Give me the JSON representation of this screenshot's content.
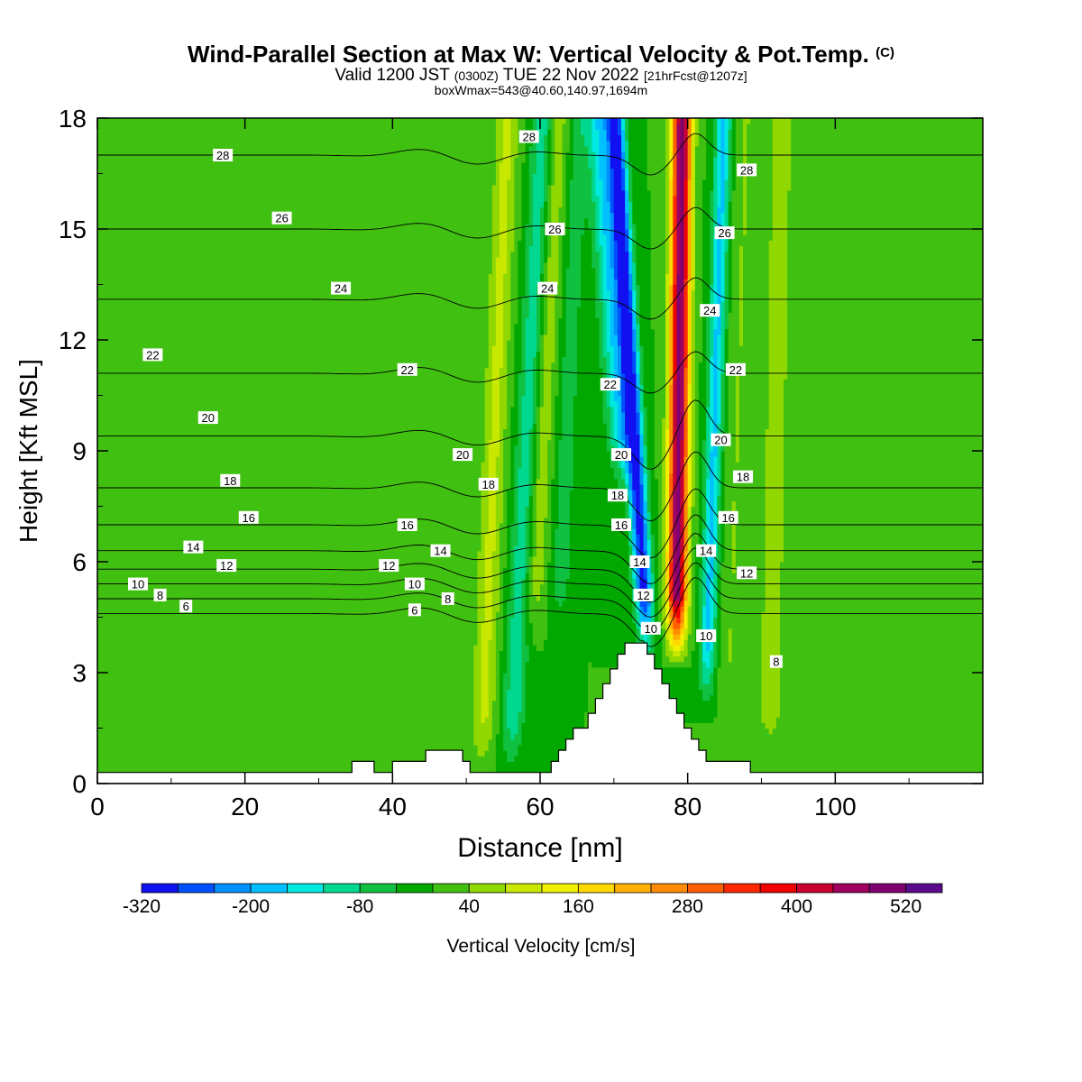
{
  "header": {
    "title": "Wind-Parallel Section at Max W: Vertical Velocity & Pot.Temp.",
    "copyright": "(C)",
    "valid_prefix": "Valid 1200 JST",
    "valid_utc": "(0300Z)",
    "valid_date": "TUE 22 Nov 2022",
    "forecast": "[21hrFcst@1207z]",
    "box_info": "boxWmax=543@40.60,140.97,1694m"
  },
  "chart_data": {
    "type": "heatmap",
    "xlabel": "Distance [nm]",
    "ylabel": "Height [Kft MSL]",
    "xlim": [
      0,
      120
    ],
    "ylim": [
      0,
      18
    ],
    "x_ticks": [
      "0",
      "20",
      "40",
      "60",
      "80",
      "100"
    ],
    "y_ticks": [
      "0",
      "3",
      "6",
      "9",
      "12",
      "15",
      "18"
    ],
    "colorbar": {
      "label": "Vertical Velocity [cm/s]",
      "tick_labels": [
        "-320",
        "-200",
        "-80",
        "40",
        "160",
        "280",
        "400",
        "520"
      ],
      "levels": [
        -320,
        -280,
        -240,
        -200,
        -160,
        -120,
        -80,
        -40,
        0,
        40,
        80,
        120,
        160,
        200,
        240,
        280,
        320,
        360,
        400,
        440,
        480,
        520,
        560
      ],
      "colors": [
        "#1010f0",
        "#0050ff",
        "#0090ff",
        "#00c0ff",
        "#00e8e0",
        "#00d890",
        "#10c040",
        "#00a800",
        "#40c010",
        "#90d800",
        "#c8e800",
        "#f0f000",
        "#ffd800",
        "#ffb000",
        "#ff8c00",
        "#ff6000",
        "#ff2800",
        "#f00000",
        "#c80030",
        "#a00060",
        "#800070",
        "#5a0a8a"
      ]
    },
    "background_w": 0,
    "w_features": [
      {
        "x": 78.5,
        "z_bottom": 3.6,
        "z_top": 18,
        "peak_w": 500,
        "sigma": 1.3,
        "tilt": 0.05
      },
      {
        "x": 74.5,
        "z_bottom": 3.6,
        "z_top": 18,
        "peak_w": -300,
        "sigma": 1.2,
        "tilt": -0.3
      },
      {
        "x": 71.5,
        "z_bottom": 8,
        "z_top": 18,
        "peak_w": -160,
        "sigma": 1.8,
        "tilt": -0.35
      },
      {
        "x": 82.5,
        "z_bottom": 2.2,
        "z_top": 18,
        "peak_w": -170,
        "sigma": 1.1,
        "tilt": 0.15
      },
      {
        "x": 52,
        "z_bottom": 0.3,
        "z_top": 18,
        "peak_w": 90,
        "sigma": 1.6,
        "tilt": 0.2
      },
      {
        "x": 56,
        "z_bottom": 0.3,
        "z_top": 18,
        "peak_w": -110,
        "sigma": 1.5,
        "tilt": 0.25
      },
      {
        "x": 59,
        "z_bottom": 4,
        "z_top": 18,
        "peak_w": 70,
        "sigma": 1.5,
        "tilt": 0.25
      },
      {
        "x": 62.5,
        "z_bottom": 4,
        "z_top": 18,
        "peak_w": -60,
        "sigma": 1.5,
        "tilt": 0.2
      },
      {
        "x": 85.5,
        "z_bottom": 1.8,
        "z_top": 18,
        "peak_w": 40,
        "sigma": 1.5,
        "tilt": 0.15
      },
      {
        "x": 91,
        "z_bottom": 0.3,
        "z_top": 18,
        "peak_w": 50,
        "sigma": 2.5,
        "tilt": 0.1
      },
      {
        "x": 15,
        "z_bottom": 1,
        "z_top": 18,
        "peak_w": 20,
        "sigma": 8,
        "tilt": 0
      },
      {
        "x": 110,
        "z_bottom": 0.3,
        "z_top": 18,
        "peak_w": 30,
        "sigma": 4,
        "tilt": 0
      }
    ],
    "terrain_profile": [
      [
        0,
        0.3
      ],
      [
        34.5,
        0.3
      ],
      [
        34.5,
        0.6
      ],
      [
        37.5,
        0.6
      ],
      [
        37.5,
        0.3
      ],
      [
        40,
        0.3
      ],
      [
        40,
        0.6
      ],
      [
        44.5,
        0.6
      ],
      [
        44.5,
        0.9
      ],
      [
        49.5,
        0.9
      ],
      [
        49.5,
        0.6
      ],
      [
        50.5,
        0.6
      ],
      [
        50.5,
        0.3
      ],
      [
        61.5,
        0.3
      ],
      [
        61.5,
        0.6
      ],
      [
        62.5,
        0.6
      ],
      [
        62.5,
        0.9
      ],
      [
        63.5,
        0.9
      ],
      [
        63.5,
        1.2
      ],
      [
        64.5,
        1.2
      ],
      [
        64.5,
        1.5
      ],
      [
        66.5,
        1.5
      ],
      [
        66.5,
        1.9
      ],
      [
        67.5,
        1.9
      ],
      [
        67.5,
        2.3
      ],
      [
        68.5,
        2.3
      ],
      [
        68.5,
        2.7
      ],
      [
        69.5,
        2.7
      ],
      [
        69.5,
        3.1
      ],
      [
        70.5,
        3.1
      ],
      [
        70.5,
        3.5
      ],
      [
        71.5,
        3.5
      ],
      [
        71.5,
        3.8
      ],
      [
        74.5,
        3.8
      ],
      [
        74.5,
        3.5
      ],
      [
        75.5,
        3.5
      ],
      [
        75.5,
        3.1
      ],
      [
        76.5,
        3.1
      ],
      [
        76.5,
        2.7
      ],
      [
        77.5,
        2.7
      ],
      [
        77.5,
        2.3
      ],
      [
        78.5,
        2.3
      ],
      [
        78.5,
        1.9
      ],
      [
        79.5,
        1.9
      ],
      [
        79.5,
        1.5
      ],
      [
        80.5,
        1.5
      ],
      [
        80.5,
        1.2
      ],
      [
        81.5,
        1.2
      ],
      [
        81.5,
        0.9
      ],
      [
        82.5,
        0.9
      ],
      [
        82.5,
        0.6
      ],
      [
        88.5,
        0.6
      ],
      [
        88.5,
        0.3
      ],
      [
        120,
        0.3
      ]
    ],
    "theta_contours": {
      "unit": "C",
      "levels": [
        6,
        8,
        10,
        12,
        14,
        16,
        18,
        20,
        22,
        24,
        26,
        28
      ],
      "base_height_kft": [
        4.6,
        5.0,
        5.4,
        5.8,
        6.3,
        7.0,
        8.0,
        9.4,
        11.1,
        13.1,
        15.0,
        17.0
      ],
      "labels": [
        {
          "level": "28",
          "x": 17,
          "z": 17.0
        },
        {
          "level": "26",
          "x": 25,
          "z": 15.3
        },
        {
          "level": "24",
          "x": 33,
          "z": 13.4
        },
        {
          "level": "22",
          "x": 7.5,
          "z": 11.6
        },
        {
          "level": "20",
          "x": 15,
          "z": 9.9
        },
        {
          "level": "18",
          "x": 18,
          "z": 8.2
        },
        {
          "level": "16",
          "x": 20.5,
          "z": 7.2
        },
        {
          "level": "14",
          "x": 13,
          "z": 6.4
        },
        {
          "level": "12",
          "x": 17.5,
          "z": 5.9
        },
        {
          "level": "10",
          "x": 5.5,
          "z": 5.4
        },
        {
          "level": "8",
          "x": 8.5,
          "z": 5.1
        },
        {
          "level": "6",
          "x": 12,
          "z": 4.8
        },
        {
          "level": "22",
          "x": 42,
          "z": 11.2
        },
        {
          "level": "16",
          "x": 42,
          "z": 7.0
        },
        {
          "level": "12",
          "x": 39.5,
          "z": 5.9
        },
        {
          "level": "10",
          "x": 43,
          "z": 5.4
        },
        {
          "level": "6",
          "x": 43,
          "z": 4.7
        },
        {
          "level": "14",
          "x": 46.5,
          "z": 6.3
        },
        {
          "level": "8",
          "x": 47.5,
          "z": 5.0
        },
        {
          "level": "20",
          "x": 49.5,
          "z": 8.9
        },
        {
          "level": "18",
          "x": 53,
          "z": 8.1
        },
        {
          "level": "28",
          "x": 58.5,
          "z": 17.5
        },
        {
          "level": "26",
          "x": 62,
          "z": 15.0
        },
        {
          "level": "24",
          "x": 61,
          "z": 13.4
        },
        {
          "level": "22",
          "x": 69.5,
          "z": 10.8
        },
        {
          "level": "20",
          "x": 71,
          "z": 8.9
        },
        {
          "level": "18",
          "x": 70.5,
          "z": 7.8
        },
        {
          "level": "16",
          "x": 71,
          "z": 7.0
        },
        {
          "level": "14",
          "x": 73.5,
          "z": 6.0
        },
        {
          "level": "12",
          "x": 74,
          "z": 5.1
        },
        {
          "level": "10",
          "x": 75,
          "z": 4.2
        },
        {
          "level": "28",
          "x": 88,
          "z": 16.6
        },
        {
          "level": "26",
          "x": 85,
          "z": 14.9
        },
        {
          "level": "24",
          "x": 83,
          "z": 12.8
        },
        {
          "level": "22",
          "x": 86.5,
          "z": 11.2
        },
        {
          "level": "20",
          "x": 84.5,
          "z": 9.3
        },
        {
          "level": "18",
          "x": 87.5,
          "z": 8.3
        },
        {
          "level": "16",
          "x": 85.5,
          "z": 7.2
        },
        {
          "level": "14",
          "x": 82.5,
          "z": 6.3
        },
        {
          "level": "12",
          "x": 88,
          "z": 5.7
        },
        {
          "level": "10",
          "x": 82.5,
          "z": 4.0
        },
        {
          "level": "8",
          "x": 92,
          "z": 3.3
        }
      ]
    }
  }
}
